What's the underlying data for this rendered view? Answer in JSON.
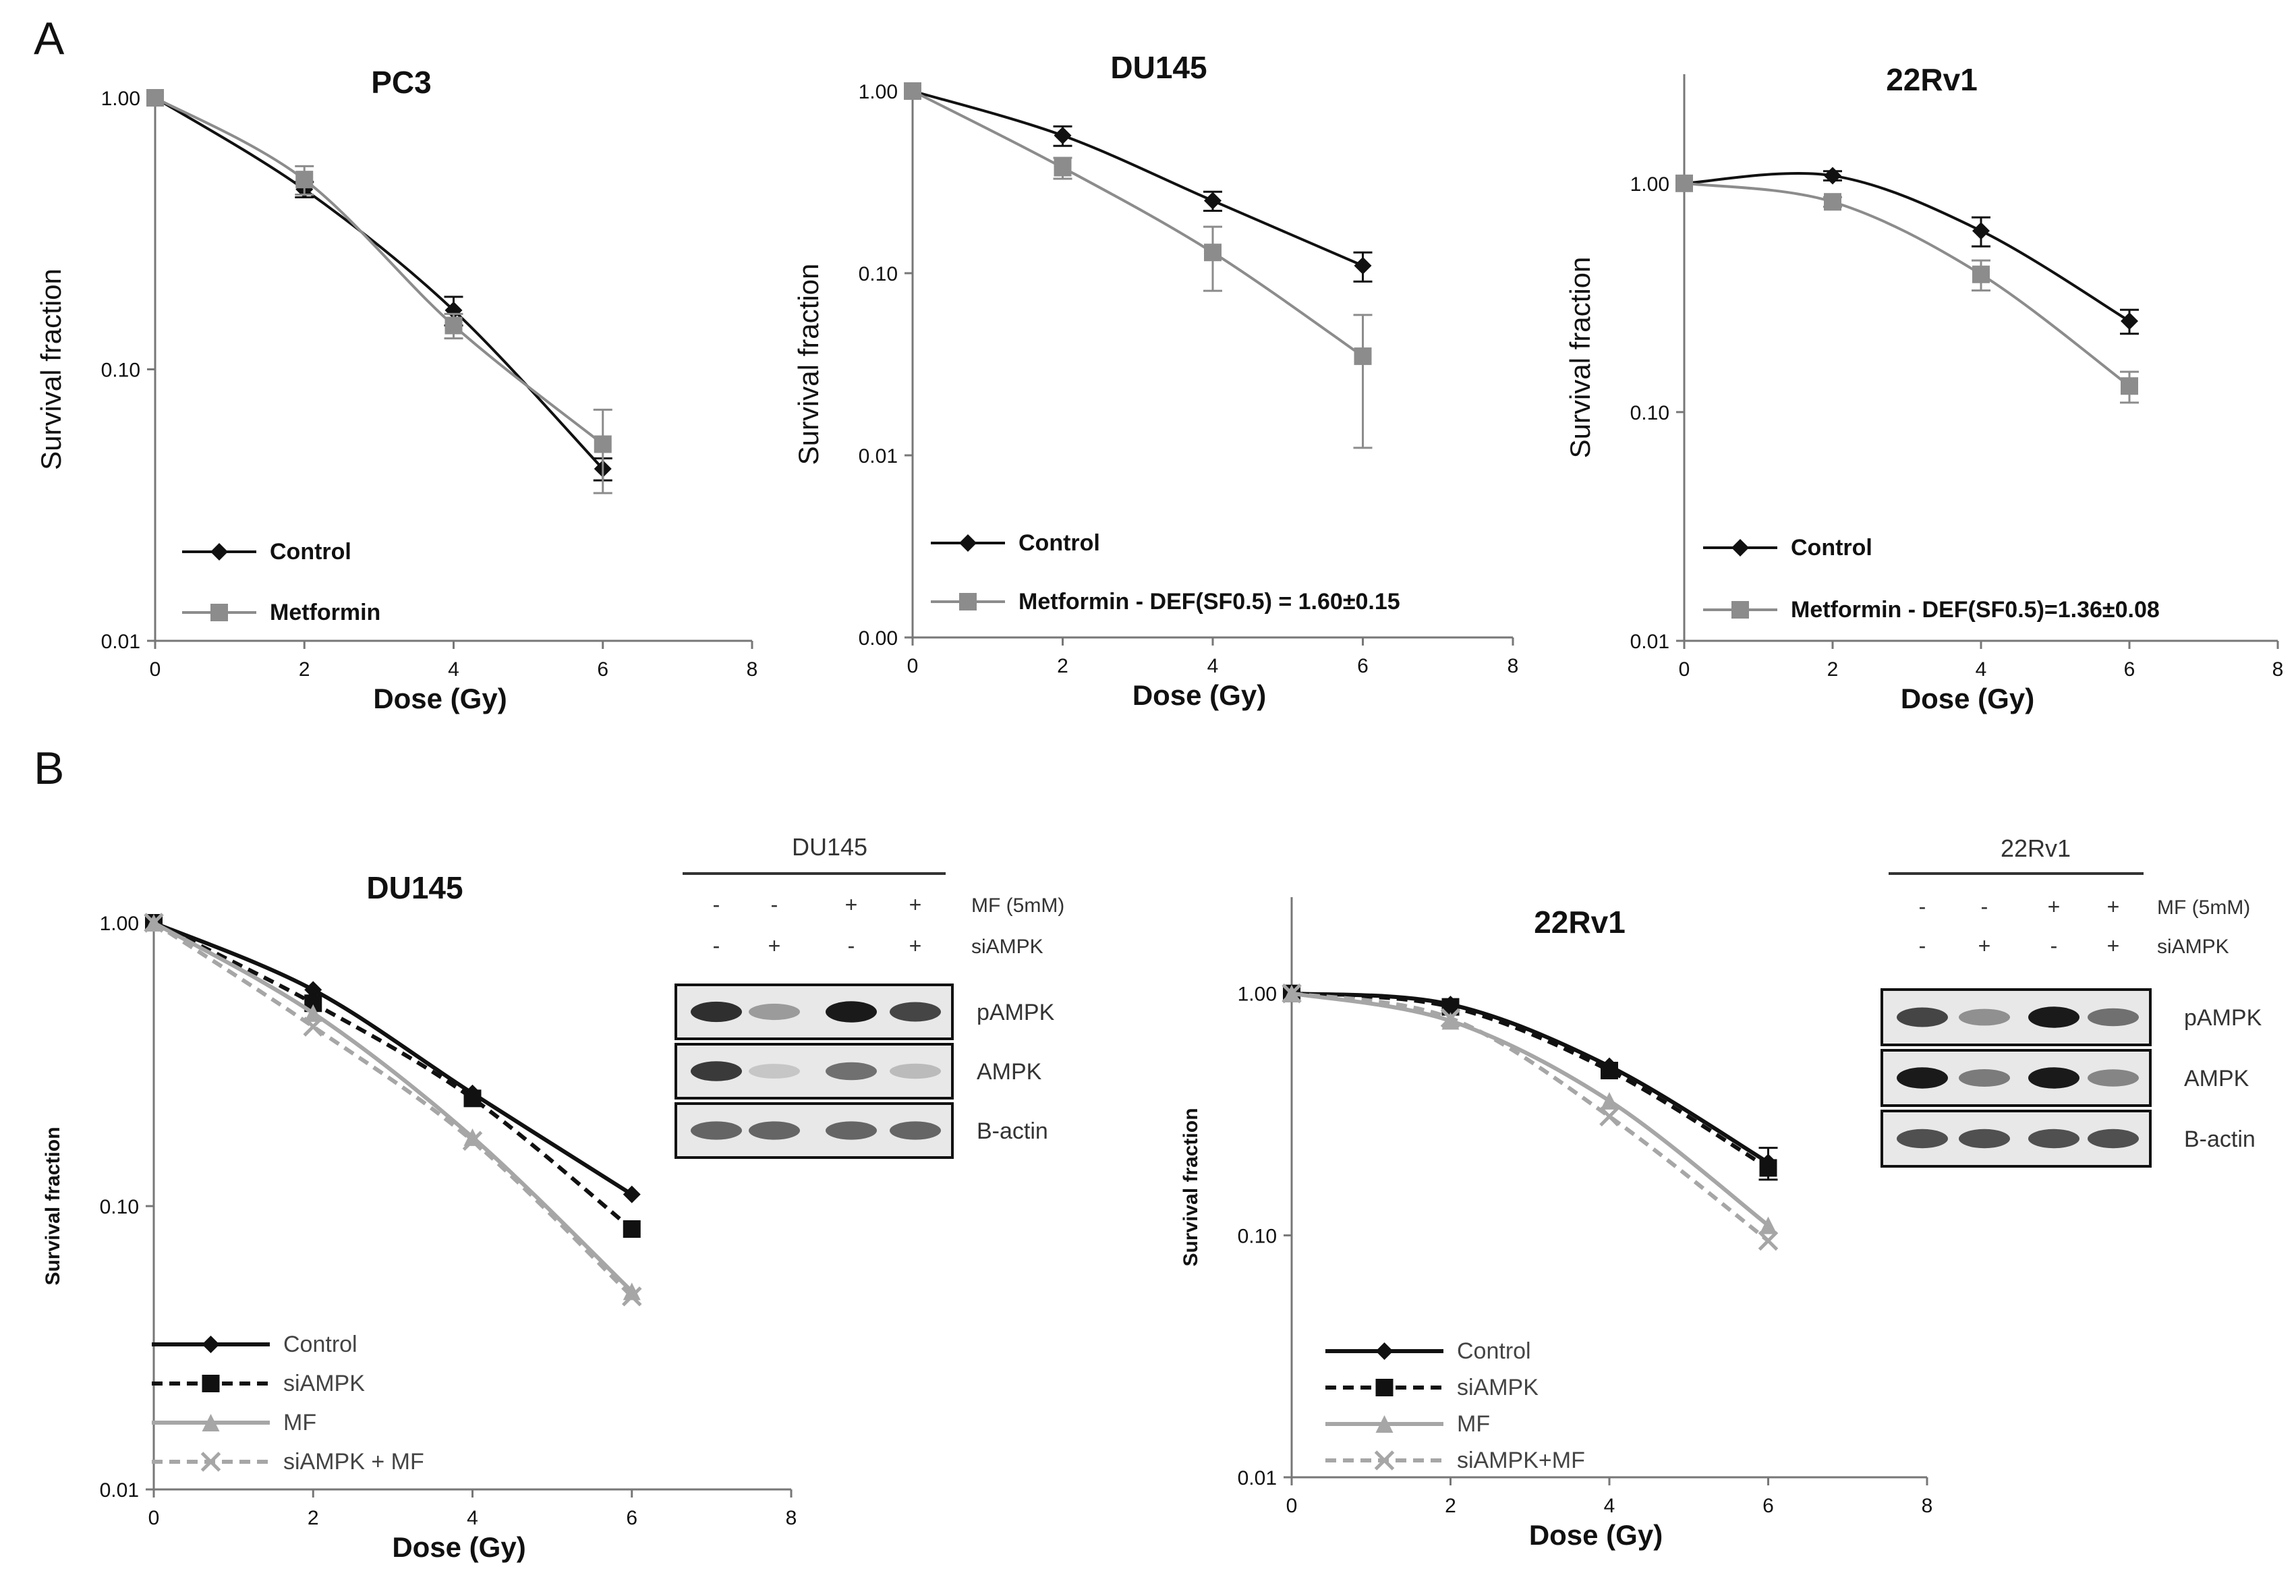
{
  "figure": {
    "panel_A_label": "A",
    "panel_B_label": "B"
  },
  "blots": [
    {
      "title": "DU145",
      "rows": [
        {
          "label": "MF (5mM)",
          "signs": [
            "-",
            "-",
            "+",
            "+"
          ]
        },
        {
          "label": "siAMPK",
          "signs": [
            "-",
            "+",
            "-",
            "+"
          ]
        }
      ],
      "bands": [
        {
          "label": "pAMPK",
          "intensities": [
            0.85,
            0.35,
            0.95,
            0.75
          ]
        },
        {
          "label": "AMPK",
          "intensities": [
            0.8,
            0.15,
            0.55,
            0.2
          ]
        },
        {
          "label": "B-actin",
          "intensities": [
            0.6,
            0.6,
            0.6,
            0.6
          ]
        }
      ]
    },
    {
      "title": "22Rv1",
      "rows": [
        {
          "label": "MF (5mM)",
          "signs": [
            "-",
            "-",
            "+",
            "+"
          ]
        },
        {
          "label": "siAMPK",
          "signs": [
            "-",
            "+",
            "-",
            "+"
          ]
        }
      ],
      "bands": [
        {
          "label": "pAMPK",
          "intensities": [
            0.75,
            0.4,
            0.95,
            0.55
          ]
        },
        {
          "label": "AMPK",
          "intensities": [
            0.95,
            0.5,
            0.95,
            0.45
          ]
        },
        {
          "label": "B-actin",
          "intensities": [
            0.7,
            0.7,
            0.7,
            0.7
          ]
        }
      ]
    }
  ],
  "chart_data": [
    {
      "type": "line",
      "panel": "A",
      "title": "PC3",
      "xlabel": "Dose (Gy)",
      "ylabel": "Survival fraction",
      "yscale": "log",
      "xlim": [
        0,
        8
      ],
      "ylim": [
        0.01,
        1
      ],
      "xticks": [
        "0",
        "2",
        "4",
        "6",
        "8"
      ],
      "yticks": [
        {
          "v": 1,
          "label": "1.00"
        },
        {
          "v": 0.1,
          "label": "0.10"
        },
        {
          "v": 0.01,
          "label": "0.01"
        }
      ],
      "series": [
        {
          "name": "Control",
          "color": "#111111",
          "marker": "diamond",
          "dash": "",
          "x": [
            0,
            2,
            4,
            6
          ],
          "y": [
            1.0,
            0.46,
            0.165,
            0.043
          ],
          "err": [
            0,
            0.03,
            0.02,
            0.004
          ]
        },
        {
          "name": "Metformin",
          "color": "#8c8c8c",
          "marker": "square",
          "dash": "",
          "x": [
            0,
            2,
            4,
            6
          ],
          "y": [
            1.0,
            0.5,
            0.145,
            0.053
          ],
          "err": [
            0,
            0.06,
            0.015,
            0.018
          ]
        }
      ]
    },
    {
      "type": "line",
      "panel": "A",
      "title": "DU145",
      "xlabel": "Dose (Gy)",
      "ylabel": "Survival fraction",
      "yscale": "log",
      "xlim": [
        0,
        8
      ],
      "ylim": [
        0.001,
        1
      ],
      "xticks": [
        "0",
        "2",
        "4",
        "6",
        "8"
      ],
      "yticks": [
        {
          "v": 1,
          "label": "1.00"
        },
        {
          "v": 0.1,
          "label": "0.10"
        },
        {
          "v": 0.01,
          "label": "0.01"
        },
        {
          "v": 0.001,
          "label": "0.00"
        }
      ],
      "series": [
        {
          "name": "Control",
          "color": "#111111",
          "marker": "diamond",
          "dash": "",
          "x": [
            0,
            2,
            4,
            6
          ],
          "y": [
            1.0,
            0.57,
            0.25,
            0.11
          ],
          "err": [
            0,
            0.07,
            0.03,
            0.02
          ]
        },
        {
          "name": "Metformin - DEF(SF0.5) = 1.60±0.15",
          "mark": "*",
          "color": "#8c8c8c",
          "marker": "square",
          "dash": "",
          "x": [
            0,
            2,
            4,
            6
          ],
          "y": [
            1.0,
            0.38,
            0.13,
            0.035
          ],
          "err": [
            0,
            0.05,
            0.05,
            0.024
          ]
        }
      ]
    },
    {
      "type": "line",
      "panel": "A",
      "title": "22Rv1",
      "xlabel": "Dose (Gy)",
      "ylabel": "Survival fraction",
      "yscale": "log",
      "xlim": [
        0,
        8
      ],
      "ylim": [
        0.01,
        3
      ],
      "xticks": [
        "0",
        "2",
        "4",
        "6",
        "8"
      ],
      "yticks": [
        {
          "v": 1,
          "label": "1.00"
        },
        {
          "v": 0.1,
          "label": "0.10"
        },
        {
          "v": 0.01,
          "label": "0.01"
        }
      ],
      "series": [
        {
          "name": "Control",
          "color": "#111111",
          "marker": "diamond",
          "dash": "",
          "x": [
            0,
            2,
            4,
            6
          ],
          "y": [
            1.0,
            1.08,
            0.62,
            0.25
          ],
          "err": [
            0,
            0.05,
            0.09,
            0.03
          ]
        },
        {
          "name": "Metformin - DEF(SF0.5)=1.36±0.08",
          "mark": "*",
          "color": "#8c8c8c",
          "marker": "square",
          "dash": "",
          "x": [
            0,
            2,
            4,
            6
          ],
          "y": [
            1.0,
            0.83,
            0.4,
            0.13
          ],
          "err": [
            0,
            0.04,
            0.06,
            0.02
          ]
        }
      ]
    },
    {
      "type": "line",
      "panel": "B",
      "title": "DU145",
      "xlabel": "Dose (Gy)",
      "ylabel": "Survival fraction",
      "yscale": "log",
      "xlim": [
        0,
        8
      ],
      "ylim": [
        0.01,
        1
      ],
      "xticks": [
        "0",
        "2",
        "4",
        "6",
        "8"
      ],
      "yticks": [
        {
          "v": 1,
          "label": "1.00"
        },
        {
          "v": 0.1,
          "label": "0.10"
        },
        {
          "v": 0.01,
          "label": "0.01"
        }
      ],
      "series": [
        {
          "name": "Control",
          "color": "#111111",
          "marker": "diamond",
          "dash": "",
          "x": [
            0,
            2,
            4,
            6
          ],
          "y": [
            1.0,
            0.58,
            0.25,
            0.11
          ],
          "err": [
            0,
            0,
            0,
            0
          ]
        },
        {
          "name": "siAMPK",
          "color": "#111111",
          "marker": "square",
          "dash": "16,10",
          "x": [
            0,
            2,
            4,
            6
          ],
          "y": [
            1.0,
            0.52,
            0.24,
            0.083
          ],
          "err": [
            0,
            0,
            0,
            0
          ]
        },
        {
          "name": "MF",
          "color": "#a6a6a6",
          "marker": "triangle",
          "dash": "",
          "x": [
            0,
            2,
            4,
            6
          ],
          "y": [
            1.0,
            0.48,
            0.175,
            0.05
          ],
          "err": [
            0,
            0,
            0,
            0
          ]
        },
        {
          "name": "siAMPK + MF",
          "color": "#a6a6a6",
          "marker": "x",
          "dash": "16,10",
          "x": [
            0,
            2,
            4,
            6
          ],
          "y": [
            1.0,
            0.43,
            0.17,
            0.048
          ],
          "err": [
            0,
            0,
            0,
            0
          ]
        }
      ]
    },
    {
      "type": "line",
      "panel": "B",
      "title": "22Rv1",
      "xlabel": "Dose (Gy)",
      "ylabel": "Survival fraction",
      "yscale": "log",
      "xlim": [
        0,
        8
      ],
      "ylim": [
        0.01,
        2.5
      ],
      "xticks": [
        "0",
        "2",
        "4",
        "6",
        "8"
      ],
      "yticks": [
        {
          "v": 1,
          "label": "1.00"
        },
        {
          "v": 0.1,
          "label": "0.10"
        },
        {
          "v": 0.01,
          "label": "0.01"
        }
      ],
      "series": [
        {
          "name": "Control",
          "color": "#111111",
          "marker": "diamond",
          "dash": "",
          "x": [
            0,
            2,
            4,
            6
          ],
          "y": [
            1.0,
            0.9,
            0.5,
            0.2
          ],
          "err": [
            0,
            0,
            0,
            0.03
          ]
        },
        {
          "name": "siAMPK",
          "color": "#111111",
          "marker": "square",
          "dash": "16,10",
          "x": [
            0,
            2,
            4,
            6
          ],
          "y": [
            1.0,
            0.88,
            0.48,
            0.19
          ],
          "err": [
            0,
            0,
            0,
            0
          ]
        },
        {
          "name": "MF",
          "color": "#a6a6a6",
          "marker": "triangle",
          "dash": "",
          "x": [
            0,
            2,
            4,
            6
          ],
          "y": [
            1.0,
            0.77,
            0.36,
            0.11
          ],
          "err": [
            0,
            0,
            0,
            0
          ]
        },
        {
          "name": "siAMPK+MF",
          "color": "#a6a6a6",
          "marker": "x",
          "dash": "16,10",
          "x": [
            0,
            2,
            4,
            6
          ],
          "y": [
            1.0,
            0.79,
            0.31,
            0.095
          ],
          "err": [
            0,
            0,
            0,
            0
          ]
        }
      ]
    }
  ]
}
